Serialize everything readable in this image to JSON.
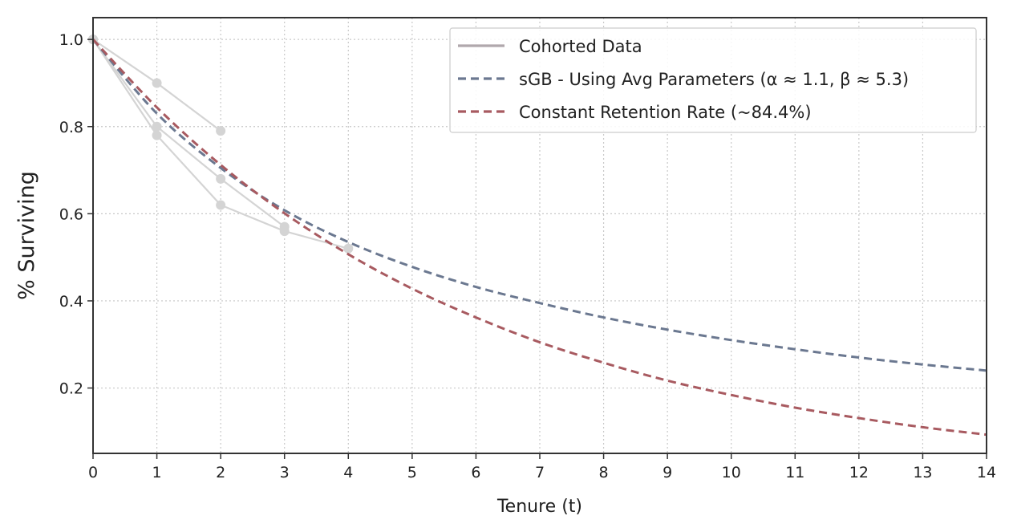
{
  "chart_data": {
    "type": "line",
    "title": "",
    "xlabel": "Tenure (t)",
    "ylabel": "% Surviving",
    "xlim": [
      0,
      14
    ],
    "ylim": [
      0.05,
      1.05
    ],
    "xticks": [
      0,
      1,
      2,
      3,
      4,
      5,
      6,
      7,
      8,
      9,
      10,
      11,
      12,
      13,
      14
    ],
    "yticks": [
      0.2,
      0.4,
      0.6,
      0.8,
      1.0
    ],
    "grid": true,
    "legend_position": "top-right",
    "legend": [
      {
        "key": "cohorts",
        "label": "Cohorted Data",
        "color": "#b0a8ac",
        "dash": "solid"
      },
      {
        "key": "sgb",
        "label": "sGB - Using Avg Parameters (α ≈ 1.1, β ≈ 5.3)",
        "color": "#6b7890",
        "dash": "dashed"
      },
      {
        "key": "constant",
        "label": "Constant Retention Rate (~84.4%)",
        "color": "#a85a60",
        "dash": "dashed"
      }
    ],
    "cohort_color": "#d4d4d4",
    "cohorts": [
      {
        "x": [
          0,
          1,
          2
        ],
        "y": [
          1.0,
          0.9,
          0.79
        ]
      },
      {
        "x": [
          0,
          1,
          2,
          3
        ],
        "y": [
          1.0,
          0.8,
          0.68,
          0.57
        ]
      },
      {
        "x": [
          0,
          1,
          2,
          3,
          4
        ],
        "y": [
          1.0,
          0.78,
          0.62,
          0.56,
          0.52
        ]
      }
    ],
    "series": [
      {
        "key": "sgb",
        "x": [
          0,
          1,
          2,
          3,
          4,
          5,
          6,
          7,
          8,
          9,
          10,
          11,
          12,
          13,
          14
        ],
        "y": [
          1.0,
          0.83,
          0.705,
          0.608,
          0.535,
          0.478,
          0.432,
          0.395,
          0.362,
          0.334,
          0.31,
          0.289,
          0.27,
          0.254,
          0.24
        ]
      },
      {
        "key": "constant",
        "x": [
          0,
          1,
          2,
          3,
          4,
          5,
          6,
          7,
          8,
          9,
          10,
          11,
          12,
          13,
          14
        ],
        "y": [
          1.0,
          0.844,
          0.712,
          0.601,
          0.507,
          0.428,
          0.362,
          0.305,
          0.258,
          0.217,
          0.184,
          0.155,
          0.131,
          0.11,
          0.093
        ]
      }
    ]
  }
}
